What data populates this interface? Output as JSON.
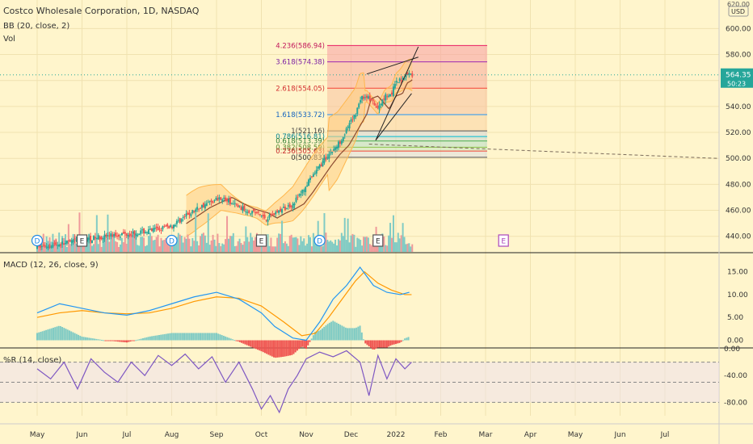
{
  "header": {
    "symbol_line": "Costco Wholesale Corporation, 1D, NASDAQ",
    "bb_label": "BB (20, close, 2)",
    "vol_label": "Vol",
    "currency": "USD",
    "top_price_cut": "620.00"
  },
  "price_axis": {
    "ticks": [
      "600.00",
      "580.00",
      "560.00",
      "540.00",
      "520.00",
      "500.00",
      "480.00",
      "460.00",
      "440.00"
    ],
    "current_price": "564.35",
    "countdown": "50:23"
  },
  "macd": {
    "label": "MACD (12, 26, close, 9)",
    "ticks": [
      "15.00",
      "10.00",
      "5.00",
      "0.00"
    ]
  },
  "wr": {
    "label": "%R (14, close)",
    "ticks": [
      "0.00",
      "-40.00",
      "-80.00"
    ]
  },
  "time_axis": {
    "labels": [
      "May",
      "Jun",
      "Jul",
      "Aug",
      "Sep",
      "Oct",
      "Nov",
      "Dec",
      "2022",
      "Feb",
      "Mar",
      "Apr",
      "May",
      "Jun",
      "Jul"
    ]
  },
  "fib_labels": [
    "4.236(586.94)",
    "3.618(574.38)",
    "2.618(554.05)",
    "1.618(533.72)",
    "1(521.16)",
    "0.786(516.81)",
    "0.618(513.39)",
    "0.382(508.59)",
    "0.236(505.63)",
    "0(500.83)"
  ],
  "event_markers": [
    "D",
    "E",
    "D",
    "E",
    "D",
    "E",
    "E"
  ],
  "colors": {
    "background": "#fff5cc",
    "up": "#26a69a",
    "down": "#ef5350",
    "macd_line": "#2196f3",
    "signal_line": "#ff9800",
    "wr_line": "#7e57c2",
    "bb_fill": "#ffcc80",
    "basis": "#8b4a30"
  },
  "chart_data": [
    {
      "type": "candlestick",
      "title": "Costco Wholesale Corporation, 1D, NASDAQ",
      "ylim": [
        428,
        622
      ],
      "x": [
        "May",
        "Jun",
        "Jul",
        "Aug",
        "Sep",
        "Oct",
        "Nov",
        "Dec",
        "2022",
        "Feb",
        "Mar",
        "Apr",
        "May",
        "Jun",
        "Jul"
      ],
      "close_path": [
        [
          0,
          432
        ],
        [
          0.5,
          434
        ],
        [
          1,
          437
        ],
        [
          1.5,
          440
        ],
        [
          2,
          442
        ],
        [
          2.5,
          444
        ],
        [
          3,
          448
        ],
        [
          3.3,
          455
        ],
        [
          3.6,
          462
        ],
        [
          3.9,
          467
        ],
        [
          4.1,
          470
        ],
        [
          4.3,
          466
        ],
        [
          4.6,
          461
        ],
        [
          4.9,
          458
        ],
        [
          5.1,
          454
        ],
        [
          5.3,
          458
        ],
        [
          5.5,
          461
        ],
        [
          5.7,
          465
        ],
        [
          5.9,
          474
        ],
        [
          6.1,
          484
        ],
        [
          6.3,
          494
        ],
        [
          6.5,
          503
        ],
        [
          6.7,
          510
        ],
        [
          6.9,
          522
        ],
        [
          7.1,
          534
        ],
        [
          7.2,
          546
        ],
        [
          7.35,
          548
        ],
        [
          7.5,
          542
        ],
        [
          7.6,
          538
        ],
        [
          7.75,
          548
        ],
        [
          7.9,
          550
        ],
        [
          8.0,
          558
        ],
        [
          8.1,
          560
        ],
        [
          8.2,
          564
        ],
        [
          8.3,
          565
        ],
        [
          8.35,
          564.35
        ]
      ],
      "current_price": 564.35,
      "fib_levels": [
        {
          "ratio": 4.236,
          "price": 586.94
        },
        {
          "ratio": 3.618,
          "price": 574.38
        },
        {
          "ratio": 2.618,
          "price": 554.05
        },
        {
          "ratio": 1.618,
          "price": 533.72
        },
        {
          "ratio": 1,
          "price": 521.16
        },
        {
          "ratio": 0.786,
          "price": 516.81
        },
        {
          "ratio": 0.618,
          "price": 513.39
        },
        {
          "ratio": 0.382,
          "price": 508.59
        },
        {
          "ratio": 0.236,
          "price": 505.63
        },
        {
          "ratio": 0,
          "price": 500.83
        }
      ],
      "indicators": [
        "BB (20, close, 2)",
        "Vol"
      ]
    },
    {
      "type": "line",
      "title": "MACD (12, 26, close, 9)",
      "ylim": [
        -1.5,
        19
      ],
      "macd": [
        [
          0,
          6
        ],
        [
          0.5,
          8
        ],
        [
          1,
          7
        ],
        [
          1.5,
          6
        ],
        [
          2,
          5.5
        ],
        [
          2.5,
          6.5
        ],
        [
          3,
          8
        ],
        [
          3.5,
          9.5
        ],
        [
          4,
          10.5
        ],
        [
          4.5,
          9
        ],
        [
          5,
          6
        ],
        [
          5.3,
          3
        ],
        [
          5.7,
          0.5
        ],
        [
          6,
          0
        ],
        [
          6.3,
          4
        ],
        [
          6.6,
          9
        ],
        [
          6.9,
          12
        ],
        [
          7.2,
          16
        ],
        [
          7.5,
          12
        ],
        [
          7.8,
          10.5
        ],
        [
          8.1,
          10
        ],
        [
          8.3,
          10.5
        ]
      ],
      "signal": [
        [
          0,
          5
        ],
        [
          0.5,
          6
        ],
        [
          1,
          6.5
        ],
        [
          1.5,
          6
        ],
        [
          2,
          5.8
        ],
        [
          2.5,
          6
        ],
        [
          3,
          7
        ],
        [
          3.5,
          8.5
        ],
        [
          4,
          9.5
        ],
        [
          4.5,
          9.2
        ],
        [
          5,
          7.5
        ],
        [
          5.5,
          4
        ],
        [
          5.9,
          1
        ],
        [
          6.2,
          1.5
        ],
        [
          6.5,
          5
        ],
        [
          6.8,
          9
        ],
        [
          7.1,
          13
        ],
        [
          7.3,
          15
        ],
        [
          7.6,
          12.5
        ],
        [
          7.9,
          11
        ],
        [
          8.2,
          10
        ],
        [
          8.35,
          10
        ]
      ]
    },
    {
      "type": "line",
      "title": "%R (14, close)",
      "ylim": [
        -100,
        0
      ],
      "values": [
        [
          0,
          -30
        ],
        [
          0.3,
          -45
        ],
        [
          0.6,
          -20
        ],
        [
          0.9,
          -60
        ],
        [
          1.2,
          -15
        ],
        [
          1.5,
          -35
        ],
        [
          1.8,
          -50
        ],
        [
          2.1,
          -20
        ],
        [
          2.4,
          -40
        ],
        [
          2.7,
          -10
        ],
        [
          3,
          -25
        ],
        [
          3.3,
          -8
        ],
        [
          3.6,
          -30
        ],
        [
          3.9,
          -12
        ],
        [
          4.2,
          -50
        ],
        [
          4.5,
          -20
        ],
        [
          4.8,
          -60
        ],
        [
          5.0,
          -90
        ],
        [
          5.2,
          -70
        ],
        [
          5.4,
          -95
        ],
        [
          5.6,
          -60
        ],
        [
          5.8,
          -40
        ],
        [
          6.0,
          -15
        ],
        [
          6.3,
          -5
        ],
        [
          6.6,
          -12
        ],
        [
          6.9,
          -3
        ],
        [
          7.2,
          -20
        ],
        [
          7.4,
          -70
        ],
        [
          7.6,
          -10
        ],
        [
          7.8,
          -45
        ],
        [
          8.0,
          -15
        ],
        [
          8.2,
          -30
        ],
        [
          8.35,
          -20
        ]
      ]
    }
  ]
}
